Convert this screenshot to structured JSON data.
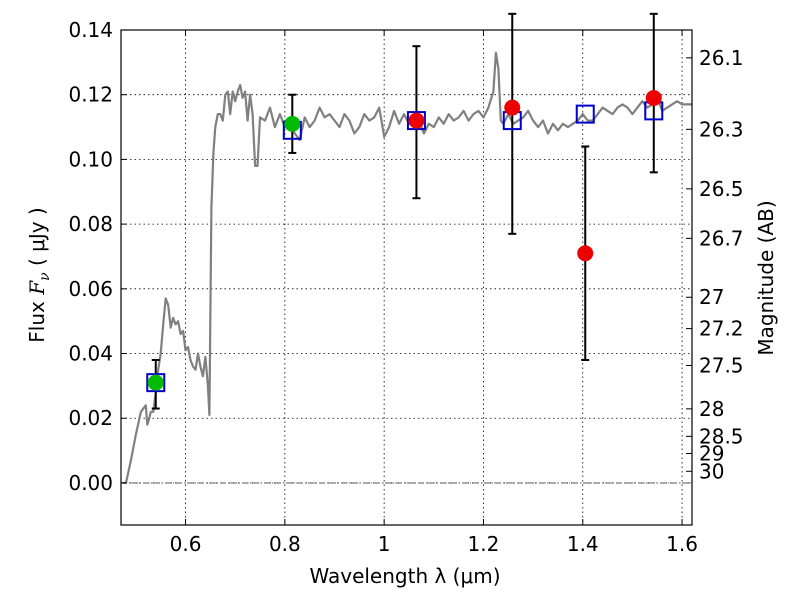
{
  "chart_data": {
    "type": "scatter",
    "title": "",
    "xlabel": "Wavelength  λ (μm)",
    "ylabel": "Flux  F_ν  ( μJy )",
    "ylabel_parts": {
      "prefix": "Flux  ",
      "symbol": "F",
      "subscript": "ν",
      "unit": "  ( μJy )"
    },
    "y2label": "Magnitude (AB)",
    "xlim": [
      0.47,
      1.62
    ],
    "ylim": [
      -0.013,
      0.14
    ],
    "grid": true,
    "x_ticks": [
      0.6,
      0.8,
      1.0,
      1.2,
      1.4,
      1.6
    ],
    "x_tick_labels": [
      "0.6",
      "0.8",
      "1",
      "1.2",
      "1.4",
      "1.6"
    ],
    "y_ticks": [
      0.0,
      0.02,
      0.04,
      0.06,
      0.08,
      0.1,
      0.12,
      0.14
    ],
    "y_tick_labels": [
      "0.00",
      "0.02",
      "0.04",
      "0.06",
      "0.08",
      "0.10",
      "0.12",
      "0.14"
    ],
    "y2_ticks": [
      {
        "label": "26.1",
        "flux": 0.1314
      },
      {
        "label": "26.3",
        "flux": 0.1093
      },
      {
        "label": "26.5",
        "flux": 0.0909
      },
      {
        "label": "26.7",
        "flux": 0.0756
      },
      {
        "label": "27",
        "flux": 0.0574
      },
      {
        "label": "27.2",
        "flux": 0.0477
      },
      {
        "label": "27.5",
        "flux": 0.0363
      },
      {
        "label": "28",
        "flux": 0.0229
      },
      {
        "label": "28.5",
        "flux": 0.0144
      },
      {
        "label": "29",
        "flux": 0.0091
      },
      {
        "label": "30",
        "flux": 0.0036
      }
    ],
    "colors": {
      "model": "#808080",
      "green": "#00bb00",
      "red": "#ee0000",
      "box": "#0000cc",
      "errorbar": "#000000",
      "zero_line": "#555555"
    },
    "series": [
      {
        "kind": "model_spectrum",
        "x": [
          0.473,
          0.48,
          0.49,
          0.5,
          0.51,
          0.52,
          0.523,
          0.527,
          0.53,
          0.535,
          0.54,
          0.545,
          0.55,
          0.555,
          0.56,
          0.565,
          0.57,
          0.575,
          0.58,
          0.585,
          0.59,
          0.595,
          0.6,
          0.605,
          0.61,
          0.615,
          0.62,
          0.625,
          0.63,
          0.635,
          0.64,
          0.645,
          0.648,
          0.652,
          0.656,
          0.66,
          0.665,
          0.67,
          0.675,
          0.68,
          0.685,
          0.69,
          0.695,
          0.7,
          0.705,
          0.71,
          0.715,
          0.72,
          0.725,
          0.73,
          0.735,
          0.74,
          0.745,
          0.75,
          0.76,
          0.77,
          0.78,
          0.79,
          0.8,
          0.81,
          0.82,
          0.83,
          0.84,
          0.85,
          0.86,
          0.87,
          0.88,
          0.89,
          0.9,
          0.91,
          0.92,
          0.93,
          0.94,
          0.95,
          0.96,
          0.97,
          0.98,
          0.99,
          1.0,
          1.01,
          1.02,
          1.03,
          1.04,
          1.05,
          1.06,
          1.07,
          1.08,
          1.09,
          1.1,
          1.11,
          1.12,
          1.13,
          1.14,
          1.15,
          1.16,
          1.17,
          1.18,
          1.19,
          1.2,
          1.21,
          1.22,
          1.225,
          1.23,
          1.235,
          1.24,
          1.25,
          1.26,
          1.27,
          1.28,
          1.29,
          1.3,
          1.31,
          1.32,
          1.33,
          1.34,
          1.35,
          1.36,
          1.37,
          1.38,
          1.39,
          1.4,
          1.41,
          1.42,
          1.43,
          1.44,
          1.45,
          1.46,
          1.47,
          1.48,
          1.49,
          1.5,
          1.51,
          1.52,
          1.53,
          1.54,
          1.55,
          1.56,
          1.57,
          1.58,
          1.59,
          1.6,
          1.61,
          1.62
        ],
        "y": [
          0.0,
          0.0,
          0.007,
          0.015,
          0.022,
          0.024,
          0.018,
          0.02,
          0.022,
          0.022,
          0.028,
          0.035,
          0.04,
          0.049,
          0.057,
          0.055,
          0.048,
          0.051,
          0.049,
          0.05,
          0.046,
          0.047,
          0.041,
          0.042,
          0.038,
          0.036,
          0.035,
          0.04,
          0.036,
          0.033,
          0.039,
          0.03,
          0.021,
          0.085,
          0.102,
          0.11,
          0.114,
          0.114,
          0.112,
          0.12,
          0.121,
          0.114,
          0.121,
          0.118,
          0.121,
          0.123,
          0.119,
          0.121,
          0.112,
          0.12,
          0.114,
          0.098,
          0.098,
          0.113,
          0.112,
          0.116,
          0.11,
          0.114,
          0.11,
          0.111,
          0.108,
          0.106,
          0.113,
          0.11,
          0.112,
          0.116,
          0.113,
          0.114,
          0.112,
          0.11,
          0.114,
          0.112,
          0.108,
          0.11,
          0.114,
          0.112,
          0.113,
          0.116,
          0.107,
          0.11,
          0.115,
          0.111,
          0.114,
          0.111,
          0.114,
          0.112,
          0.108,
          0.111,
          0.11,
          0.113,
          0.111,
          0.114,
          0.112,
          0.113,
          0.115,
          0.112,
          0.114,
          0.115,
          0.113,
          0.116,
          0.121,
          0.133,
          0.128,
          0.112,
          0.111,
          0.114,
          0.111,
          0.112,
          0.113,
          0.115,
          0.112,
          0.11,
          0.112,
          0.108,
          0.111,
          0.109,
          0.111,
          0.11,
          0.111,
          0.112,
          0.114,
          0.112,
          0.112,
          0.114,
          0.116,
          0.115,
          0.114,
          0.116,
          0.117,
          0.116,
          0.114,
          0.116,
          0.118,
          0.116,
          0.117,
          0.119,
          0.115,
          0.116,
          0.117,
          0.118,
          0.117,
          0.117,
          0.117
        ]
      },
      {
        "kind": "band_flux_box",
        "x": [
          0.54,
          0.815,
          1.065,
          1.258,
          1.405,
          1.543
        ],
        "y": [
          0.031,
          0.109,
          0.112,
          0.112,
          0.114,
          0.115
        ]
      },
      {
        "kind": "observed_green",
        "x": [
          0.54,
          0.815
        ],
        "y": [
          0.031,
          0.111
        ],
        "yerr_low": [
          0.023,
          0.102
        ],
        "yerr_high": [
          0.038,
          0.12
        ]
      },
      {
        "kind": "observed_red",
        "x": [
          1.065,
          1.258,
          1.405,
          1.543
        ],
        "y": [
          0.112,
          0.116,
          0.071,
          0.119
        ],
        "yerr_low": [
          0.088,
          0.077,
          0.038,
          0.096
        ],
        "yerr_high": [
          0.135,
          0.145,
          0.104,
          0.145
        ]
      }
    ]
  }
}
